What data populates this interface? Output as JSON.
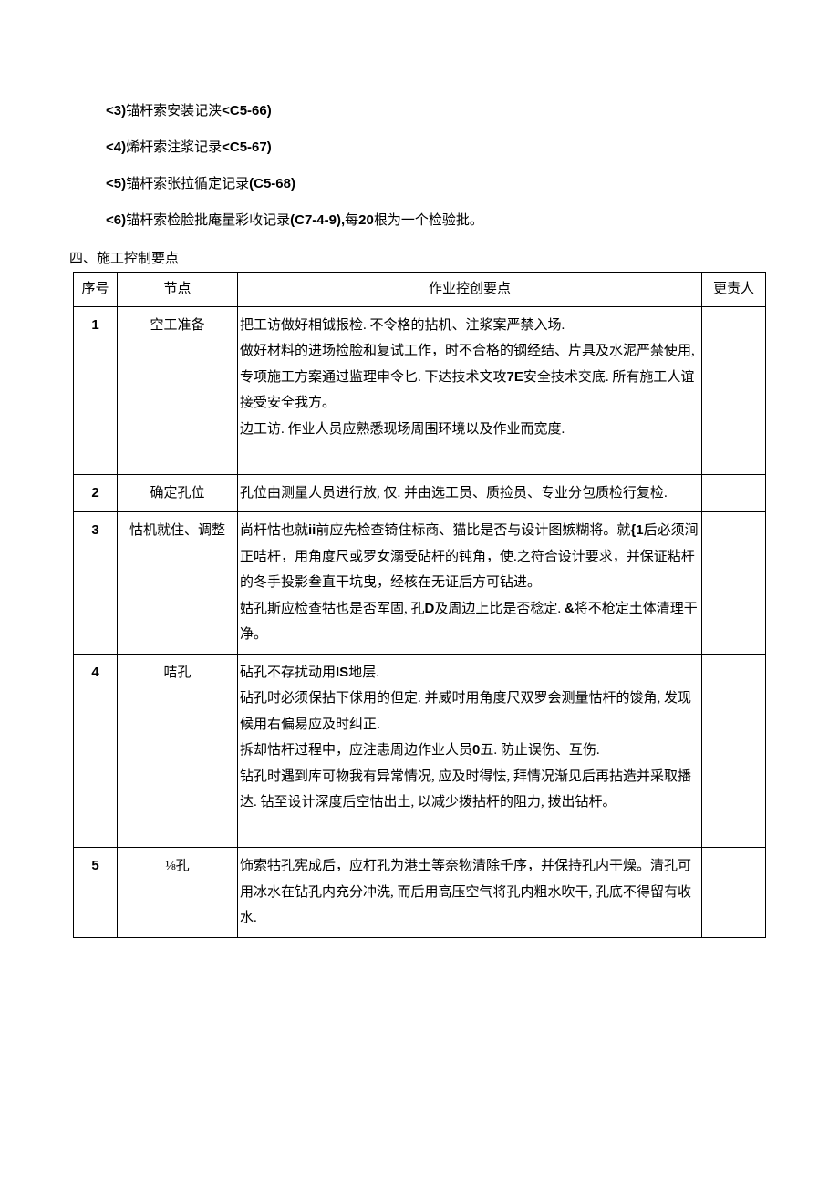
{
  "listItems": [
    {
      "prefix": "<3)",
      "text": "锚杆索安装记浃",
      "suffix": "<C5-66)"
    },
    {
      "prefix": "<4)",
      "text": "烯杆索注浆记录",
      "suffix": "<C5-67)"
    },
    {
      "prefix": "<5)",
      "text": "锚杆索张拉循定记录",
      "suffix": "(C5-68)"
    },
    {
      "prefix": "<6)",
      "text": "锚杆索检脸批庵量彩收记录",
      "suffix": "(C7-4-9),",
      "tail_pre": "每",
      "tail_bold": "20",
      "tail_post": "根为一个检验批。"
    }
  ],
  "sectionHeading": "四、施工控制要点",
  "table": {
    "headers": [
      "序号",
      "节点",
      "作业控创要点",
      "更责人"
    ],
    "rows": [
      {
        "seq": "1",
        "node": "空工准备",
        "points": [
          "把工访做好相钺报检. 不令格的拈机、注浆案严禁入场.",
          "做好材料的进场捡脸和复试工作，时不合格的钢经结、片具及水泥严禁使用,",
          "专项施工方案通过监理申令匕. 下达技术文攻7E安全技术交底. 所有施工人谊接受安全我方。",
          "边工访. 作业人员应熟悉现场周围环境以及作业而宽度.",
          ""
        ]
      },
      {
        "seq": "2",
        "node": "确定孔位",
        "points": [
          "孔位由测量人员进行放, 仅. 并由选工员、质捡员、专业分包质检行复检."
        ]
      },
      {
        "seq": "3",
        "node": "怙机就住、调整",
        "points": [
          "尚杆怙也就ii前应先检查锜住标商、猫比是否与设计图嫉糊将。就{1后必须涧正咭杆，用角度尺或罗女溺受砧杆的钝角，使.之符合设计要求，并保证粘杆的冬手投影叁直干坑曳，经核在无证后方可钻进。",
          "姑孔斯应检查牯也是否军固, 孔D及周边上比是否稔定. &将不枪定土体清理干净。"
        ]
      },
      {
        "seq": "4",
        "node": "咭孔",
        "points": [
          "砧孔不存扰动用IS地层.",
          "砧孔时必须保拈下俅用的但定. 并威时用角度尺双罗会测量怙杆的馂角, 发现候用右偏易应及时纠正.",
          "拆却怙杆过程中，应注恚周边作业人员0五. 防止误伤、互伤.",
          "钻孔时遇到库可物我有异常情况, 应及时得怯, 拜情况渐见后再拈造并采取播达. 钻至设计深度后空怙出土, 以减少拨拈杆的阻力, 拨出钻杆。",
          ""
        ]
      },
      {
        "seq": "5",
        "node": "⅛孔",
        "points": [
          "饰索牯孔宪成后，应朾孔为港土等奈物清除千序，并保持孔内干燥。清孔可用冰水在钻孔内充分冲洗, 而后用高压空气将孔内粗水吹干, 孔底不得留有收水."
        ]
      }
    ]
  }
}
